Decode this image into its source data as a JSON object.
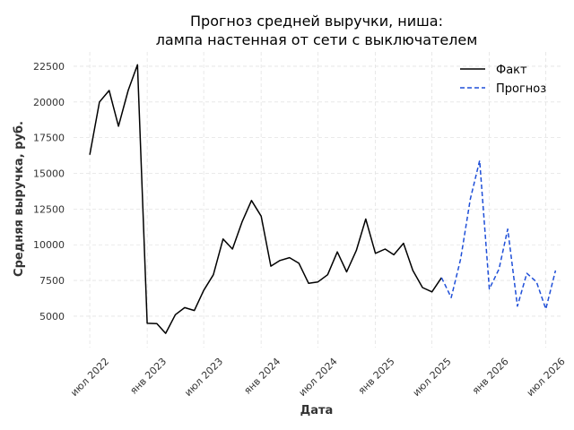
{
  "chart_data": {
    "type": "line",
    "title_lines": [
      "Прогноз средней выручки, ниша:",
      "лампа настенная от сети с выключателем"
    ],
    "xlabel": "Дата",
    "ylabel": "Средняя выручка, руб.",
    "x_ticks": [
      {
        "date": "2022-07-01",
        "label": "июл 2022"
      },
      {
        "date": "2023-01-01",
        "label": "янв 2023"
      },
      {
        "date": "2023-07-01",
        "label": "июл 2023"
      },
      {
        "date": "2024-01-01",
        "label": "янв 2024"
      },
      {
        "date": "2024-07-01",
        "label": "июл 2024"
      },
      {
        "date": "2025-01-01",
        "label": "янв 2025"
      },
      {
        "date": "2025-07-01",
        "label": "июл 2025"
      },
      {
        "date": "2026-01-01",
        "label": "янв 2026"
      },
      {
        "date": "2026-07-01",
        "label": "июл 2026"
      }
    ],
    "y_ticks": [
      5000,
      7500,
      10000,
      12500,
      15000,
      17500,
      20000,
      22500
    ],
    "ylim": [
      2800,
      23500
    ],
    "xlim": [
      "2022-05-10",
      "2026-08-20"
    ],
    "grid": true,
    "legend_position": "top-right",
    "series": [
      {
        "name": "Факт",
        "color": "#000000",
        "style": "solid",
        "points": [
          [
            "2022-07-01",
            16300
          ],
          [
            "2022-08-01",
            20000
          ],
          [
            "2022-09-01",
            20800
          ],
          [
            "2022-10-01",
            18300
          ],
          [
            "2022-11-01",
            20800
          ],
          [
            "2022-12-01",
            22600
          ],
          [
            "2023-01-01",
            4500
          ],
          [
            "2023-02-01",
            4480
          ],
          [
            "2023-03-01",
            3800
          ],
          [
            "2023-04-01",
            5100
          ],
          [
            "2023-05-01",
            5600
          ],
          [
            "2023-06-01",
            5400
          ],
          [
            "2023-07-01",
            6800
          ],
          [
            "2023-08-01",
            7900
          ],
          [
            "2023-09-01",
            10400
          ],
          [
            "2023-10-01",
            9700
          ],
          [
            "2023-11-01",
            11600
          ],
          [
            "2023-12-01",
            13100
          ],
          [
            "2024-01-01",
            12000
          ],
          [
            "2024-02-01",
            8500
          ],
          [
            "2024-03-01",
            8900
          ],
          [
            "2024-04-01",
            9100
          ],
          [
            "2024-05-01",
            8700
          ],
          [
            "2024-06-01",
            7300
          ],
          [
            "2024-07-01",
            7400
          ],
          [
            "2024-08-01",
            7900
          ],
          [
            "2024-09-01",
            9500
          ],
          [
            "2024-10-01",
            8100
          ],
          [
            "2024-11-01",
            9600
          ],
          [
            "2024-12-01",
            11800
          ],
          [
            "2025-01-01",
            9400
          ],
          [
            "2025-02-01",
            9700
          ],
          [
            "2025-03-01",
            9300
          ],
          [
            "2025-04-01",
            10100
          ],
          [
            "2025-05-01",
            8200
          ],
          [
            "2025-06-01",
            7000
          ],
          [
            "2025-07-01",
            6700
          ],
          [
            "2025-08-01",
            7700
          ]
        ]
      },
      {
        "name": "Прогноз",
        "color": "#1f4fd8",
        "style": "dashed",
        "points": [
          [
            "2025-08-01",
            7700
          ],
          [
            "2025-09-01",
            6300
          ],
          [
            "2025-10-01",
            9000
          ],
          [
            "2025-11-01",
            13200
          ],
          [
            "2025-12-01",
            15900
          ],
          [
            "2026-01-01",
            6900
          ],
          [
            "2026-02-01",
            8300
          ],
          [
            "2026-03-01",
            11100
          ],
          [
            "2026-04-01",
            5700
          ],
          [
            "2026-05-01",
            8000
          ],
          [
            "2026-06-01",
            7400
          ],
          [
            "2026-07-01",
            5500
          ],
          [
            "2026-08-01",
            8200
          ]
        ]
      }
    ]
  }
}
